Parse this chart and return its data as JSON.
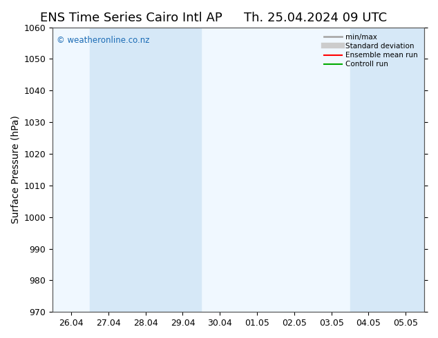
{
  "title_left": "ENS Time Series Cairo Intl AP",
  "title_right": "Th. 25.04.2024 09 UTC",
  "ylabel": "Surface Pressure (hPa)",
  "ylim": [
    970,
    1060
  ],
  "yticks": [
    970,
    980,
    990,
    1000,
    1010,
    1020,
    1030,
    1040,
    1050,
    1060
  ],
  "xtick_labels": [
    "26.04",
    "27.04",
    "28.04",
    "29.04",
    "30.04",
    "01.05",
    "02.05",
    "03.05",
    "04.05",
    "05.05"
  ],
  "shaded_regions": [
    {
      "xstart": 0.5,
      "xend": 3.5
    },
    {
      "xstart": 7.5,
      "xend": 9.5
    }
  ],
  "shaded_color": "#d6e8f7",
  "watermark": "© weatheronline.co.nz",
  "watermark_color": "#1a6bb5",
  "background_color": "#ffffff",
  "plot_bg_color": "#f0f8ff",
  "legend_items": [
    {
      "label": "min/max",
      "color": "#aaaaaa",
      "lw": 2,
      "style": "solid"
    },
    {
      "label": "Standard deviation",
      "color": "#cccccc",
      "lw": 6,
      "style": "solid"
    },
    {
      "label": "Ensemble mean run",
      "color": "#ff0000",
      "lw": 1.5,
      "style": "solid"
    },
    {
      "label": "Controll run",
      "color": "#00aa00",
      "lw": 1.5,
      "style": "solid"
    }
  ],
  "title_fontsize": 13,
  "tick_label_fontsize": 9,
  "ylabel_fontsize": 10
}
